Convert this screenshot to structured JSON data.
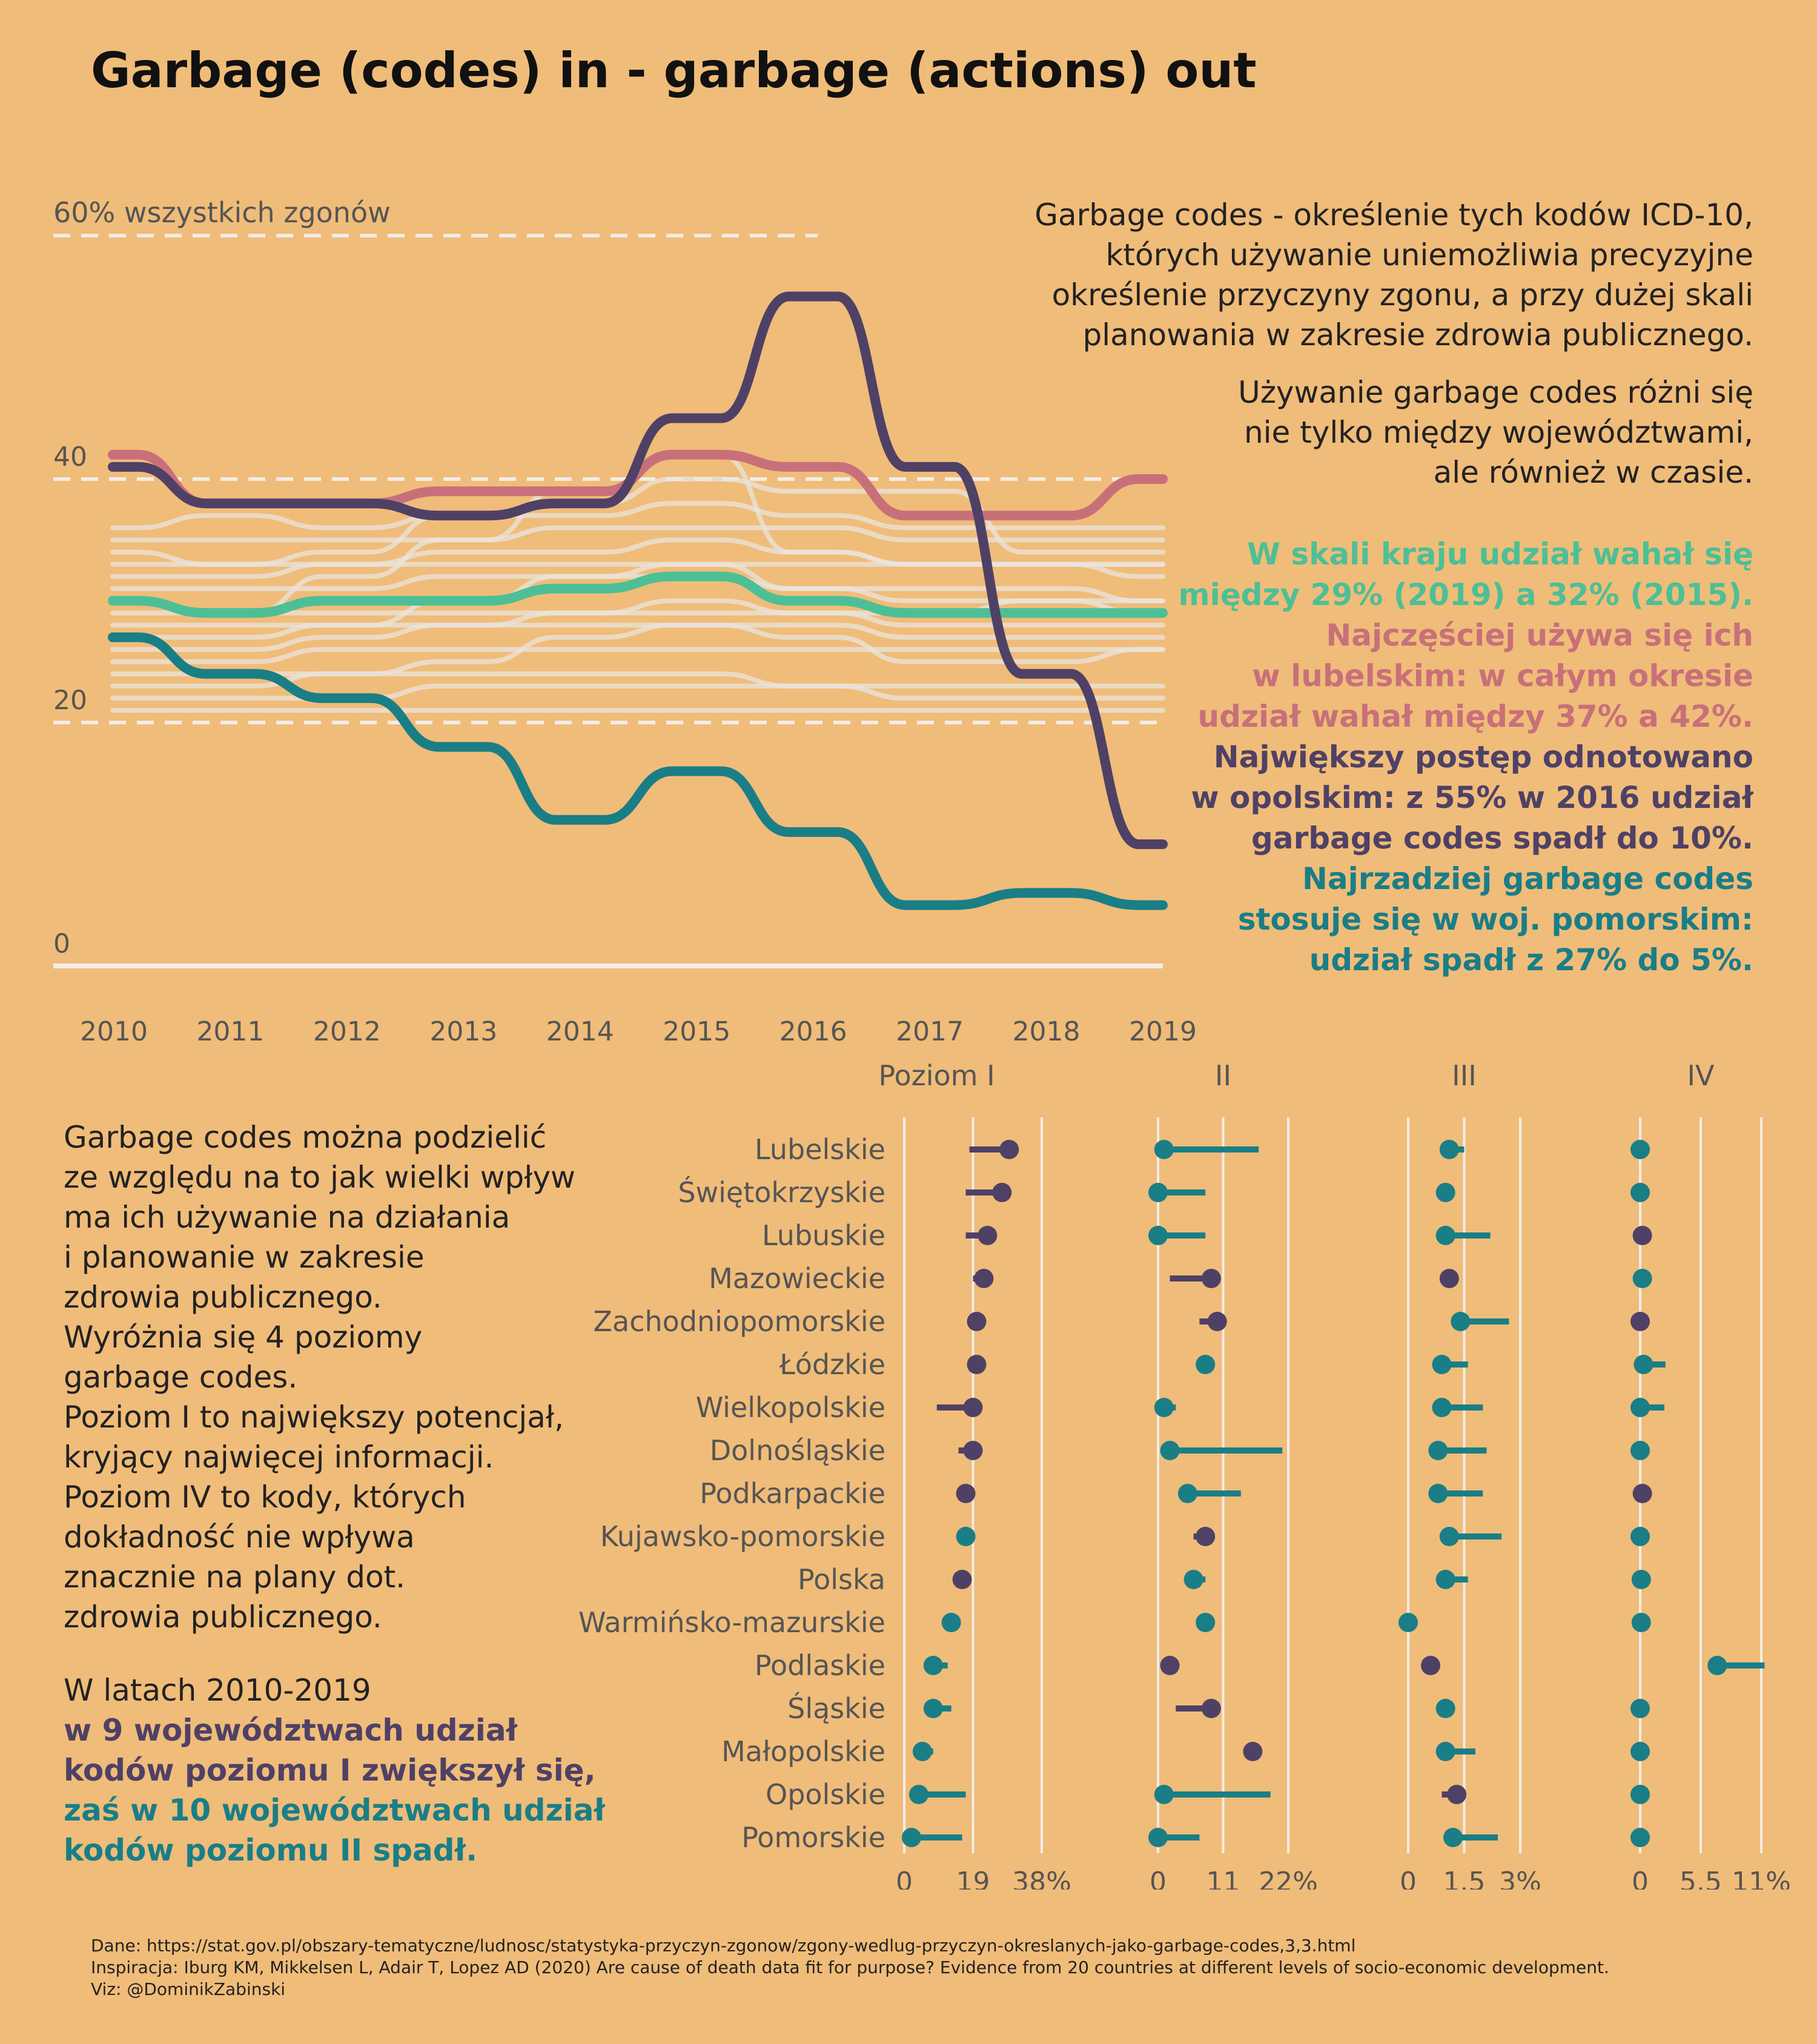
{
  "title": "Garbage (codes) in - garbage (actions) out",
  "intro": [
    "Garbage codes - określenie tych kodów ICD-10,",
    "których używanie uniemożliwia precyzyjne",
    "określenie przyczyny zgonu, a przy dużej skali",
    "planowania w zakresie zdrowia publicznego."
  ],
  "intro2": [
    "Używanie garbage codes różni się",
    "nie tylko między województwami,",
    "ale również w czasie."
  ],
  "highlights": [
    {
      "color": "green",
      "lines": [
        "W skali kraju udział wahał się",
        "między 29% (2019) a 32% (2015)."
      ]
    },
    {
      "color": "red",
      "lines": [
        "Najczęściej używa się ich",
        "w lubelskim: w całym okresie",
        "udział wahał między 37% a 42%."
      ]
    },
    {
      "color": "purple",
      "lines": [
        "Największy postęp odnotowano",
        "w opolskim: z 55% w 2016 udział",
        "garbage codes spadł do 10%."
      ]
    },
    {
      "color": "teal",
      "lines": [
        "Najrzadziej garbage codes",
        "stosuje się w woj. pomorskim:",
        "udział spadł z 27% do 5%."
      ]
    }
  ],
  "left_text": [
    "Garbage codes można podzielić",
    "ze względu na to jak wielki wpływ",
    "ma ich używanie na działania",
    "i planowanie w zakresie",
    "zdrowia publicznego.",
    "Wyróżnia się 4 poziomy",
    "garbage codes.",
    "Poziom I to największy potencjał,",
    "kryjący najwięcej informacji.",
    "Poziom IV to kody, których",
    "dokładność nie wpływa",
    "znacznie na plany dot.",
    "zdrowia publicznego."
  ],
  "left_conclusion": {
    "line1": "W latach 2010-2019",
    "purple": [
      "w 9 województwach udział",
      "kodów poziomu I zwiększył się,"
    ],
    "teal": [
      "zaś w 10 województwach udział",
      "kodów poziomu II spadł."
    ]
  },
  "footer": [
    "Dane: https://stat.gov.pl/obszary-tematyczne/ludnosc/statystyka-przyczyn-zgonow/zgony-wedlug-przyczyn-okreslanych-jako-garbage-codes,3,3.html",
    "Inspiracja: Iburg KM, Mikkelsen L, Adair T, Lopez AD (2020) Are cause of death data fit for purpose? Evidence from 20 countries at different levels of socio-economic development.",
    "Viz: @DominikZabinski"
  ],
  "colors": {
    "background": "#F0BC79",
    "green": "#4DBF96",
    "red": "#C8707A",
    "purple": "#4F4166",
    "teal": "#1A7E86",
    "gray": "#EAE4DE"
  },
  "chart_data": [
    {
      "type": "line",
      "x": [
        2010,
        2011,
        2012,
        2013,
        2014,
        2015,
        2016,
        2017,
        2018,
        2019
      ],
      "ylim": [
        0,
        60
      ],
      "y_ticks": [
        0,
        20,
        40
      ],
      "y_tick_labels": [
        "0",
        "20",
        "40"
      ],
      "ref_line_label": "60% wszystkich zgonów",
      "ref_lines": [
        20,
        40,
        60
      ],
      "highlighted_series": [
        {
          "color": "green",
          "values": [
            30,
            29,
            30,
            30,
            31,
            32,
            30,
            29,
            29,
            29
          ]
        },
        {
          "color": "red",
          "values": [
            42,
            38,
            38,
            39,
            39,
            42,
            41,
            37,
            37,
            40
          ]
        },
        {
          "color": "purple",
          "values": [
            41,
            38,
            38,
            37,
            38,
            45,
            55,
            41,
            24,
            10
          ]
        },
        {
          "color": "teal",
          "values": [
            27,
            24,
            22,
            18,
            12,
            16,
            11,
            5,
            6,
            5
          ]
        }
      ],
      "background_series": [
        [
          29,
          29,
          32,
          35,
          39,
          42,
          34,
          33,
          33,
          33
        ],
        [
          33,
          33,
          34,
          37,
          38,
          40,
          39,
          39,
          34,
          34
        ],
        [
          34,
          33,
          33,
          33,
          33,
          33,
          33,
          33,
          33,
          33
        ],
        [
          30,
          29,
          29,
          29,
          29,
          29,
          29,
          28,
          28,
          28
        ],
        [
          28,
          28,
          28,
          28,
          28,
          28,
          28,
          27,
          27,
          27
        ],
        [
          25,
          25,
          26,
          26,
          26,
          26,
          26,
          26,
          26,
          26
        ],
        [
          22,
          22,
          22,
          23,
          23,
          23,
          23,
          22,
          22,
          22
        ],
        [
          21,
          21,
          21,
          21,
          21,
          21,
          21,
          21,
          21,
          21
        ],
        [
          24,
          24,
          24,
          24,
          24,
          24,
          23,
          23,
          23,
          23
        ],
        [
          26,
          26,
          27,
          28,
          29,
          30,
          29,
          29,
          30,
          30
        ],
        [
          31,
          31,
          31,
          32,
          32,
          32,
          31,
          31,
          31,
          30
        ],
        [
          36,
          37,
          36,
          37,
          37,
          38,
          37,
          36,
          36,
          36
        ],
        [
          27,
          27,
          28,
          30,
          32,
          33,
          31,
          30,
          30,
          29
        ],
        [
          23,
          23,
          24,
          25,
          27,
          28,
          27,
          25,
          25,
          26
        ],
        [
          35,
          35,
          35,
          35,
          36,
          36,
          36,
          35,
          35,
          35
        ],
        [
          32,
          32,
          33,
          34,
          34,
          35,
          34,
          33,
          33,
          32
        ]
      ],
      "x_tick_labels": [
        "2010",
        "2011",
        "2012",
        "2013",
        "2014",
        "2015",
        "2016",
        "2017",
        "2018",
        "2019"
      ]
    },
    {
      "type": "dot_range",
      "categories": [
        "Lubelskie",
        "Świętokrzyskie",
        "Lubuskie",
        "Mazowieckie",
        "Zachodniopomorskie",
        "Łódzkie",
        "Wielkopolskie",
        "Dolnośląskie",
        "Podkarpackie",
        "Kujawsko-pomorskie",
        "Polska",
        "Warmińsko-mazurskie",
        "Podlaskie",
        "Śląskie",
        "Małopolskie",
        "Opolskie",
        "Pomorskie"
      ],
      "panels": [
        {
          "label": "Poziom I",
          "max": 38,
          "tick_labels": [
            "0",
            "19",
            "38%"
          ],
          "ticks": [
            0,
            19,
            38
          ],
          "values_2019": [
            29,
            27,
            23,
            22,
            20,
            20,
            19,
            19,
            17,
            17,
            16,
            13,
            8,
            8,
            5,
            4,
            2
          ],
          "values_2010": [
            18,
            17,
            17,
            19,
            19,
            18,
            9,
            15,
            17,
            18,
            16,
            15,
            12,
            13,
            8,
            17,
            16
          ],
          "colors": [
            "purple",
            "purple",
            "purple",
            "purple",
            "purple",
            "purple",
            "purple",
            "purple",
            "purple",
            "teal",
            "purple",
            "teal",
            "teal",
            "teal",
            "teal",
            "teal",
            "teal"
          ]
        },
        {
          "label": "II",
          "max": 22,
          "tick_labels": [
            "0",
            "11",
            "22%"
          ],
          "ticks": [
            0,
            11,
            22
          ],
          "values_2019": [
            1,
            0,
            0,
            9,
            10,
            8,
            1,
            2,
            5,
            8,
            6,
            8,
            2,
            9,
            16,
            1,
            0
          ],
          "values_2010": [
            17,
            8,
            8,
            2,
            7,
            9,
            3,
            21,
            14,
            6,
            8,
            8,
            3,
            3,
            16,
            19,
            7
          ],
          "colors": [
            "teal",
            "teal",
            "teal",
            "purple",
            "purple",
            "teal",
            "teal",
            "teal",
            "teal",
            "purple",
            "teal",
            "teal",
            "purple",
            "purple",
            "purple",
            "teal",
            "teal"
          ]
        },
        {
          "label": "III",
          "max": 3,
          "tick_labels": [
            "0",
            "1.5",
            "3%"
          ],
          "ticks": [
            0,
            1.5,
            3
          ],
          "values_2019": [
            1.1,
            1.0,
            1.0,
            1.1,
            1.4,
            0.9,
            0.9,
            0.8,
            0.8,
            1.1,
            1.0,
            0.0,
            0.6,
            1.0,
            1.0,
            1.3,
            1.2
          ],
          "values_2010": [
            1.5,
            1.0,
            2.2,
            1.2,
            2.7,
            1.6,
            2.0,
            2.1,
            2.0,
            2.5,
            1.6,
            0.0,
            0.6,
            1.0,
            1.8,
            0.9,
            2.4
          ],
          "colors": [
            "teal",
            "teal",
            "teal",
            "purple",
            "teal",
            "teal",
            "teal",
            "teal",
            "teal",
            "teal",
            "teal",
            "teal",
            "purple",
            "teal",
            "teal",
            "purple",
            "teal"
          ]
        },
        {
          "label": "IV",
          "max": 11,
          "tick_labels": [
            "0",
            "5.5",
            "11%"
          ],
          "ticks": [
            0,
            5.5,
            11
          ],
          "values_2019": [
            0,
            0,
            0.2,
            0.2,
            0,
            0.3,
            0,
            0,
            0.2,
            0,
            0.1,
            0.1,
            7,
            0,
            0,
            0,
            0
          ],
          "values_2010": [
            0,
            0,
            0,
            0,
            0,
            2.3,
            2.2,
            0,
            0,
            0,
            0,
            0,
            11.3,
            0,
            0,
            0,
            0
          ],
          "colors": [
            "teal",
            "teal",
            "purple",
            "teal",
            "purple",
            "teal",
            "teal",
            "teal",
            "purple",
            "teal",
            "teal",
            "teal",
            "teal",
            "teal",
            "teal",
            "teal",
            "teal"
          ]
        }
      ]
    }
  ]
}
